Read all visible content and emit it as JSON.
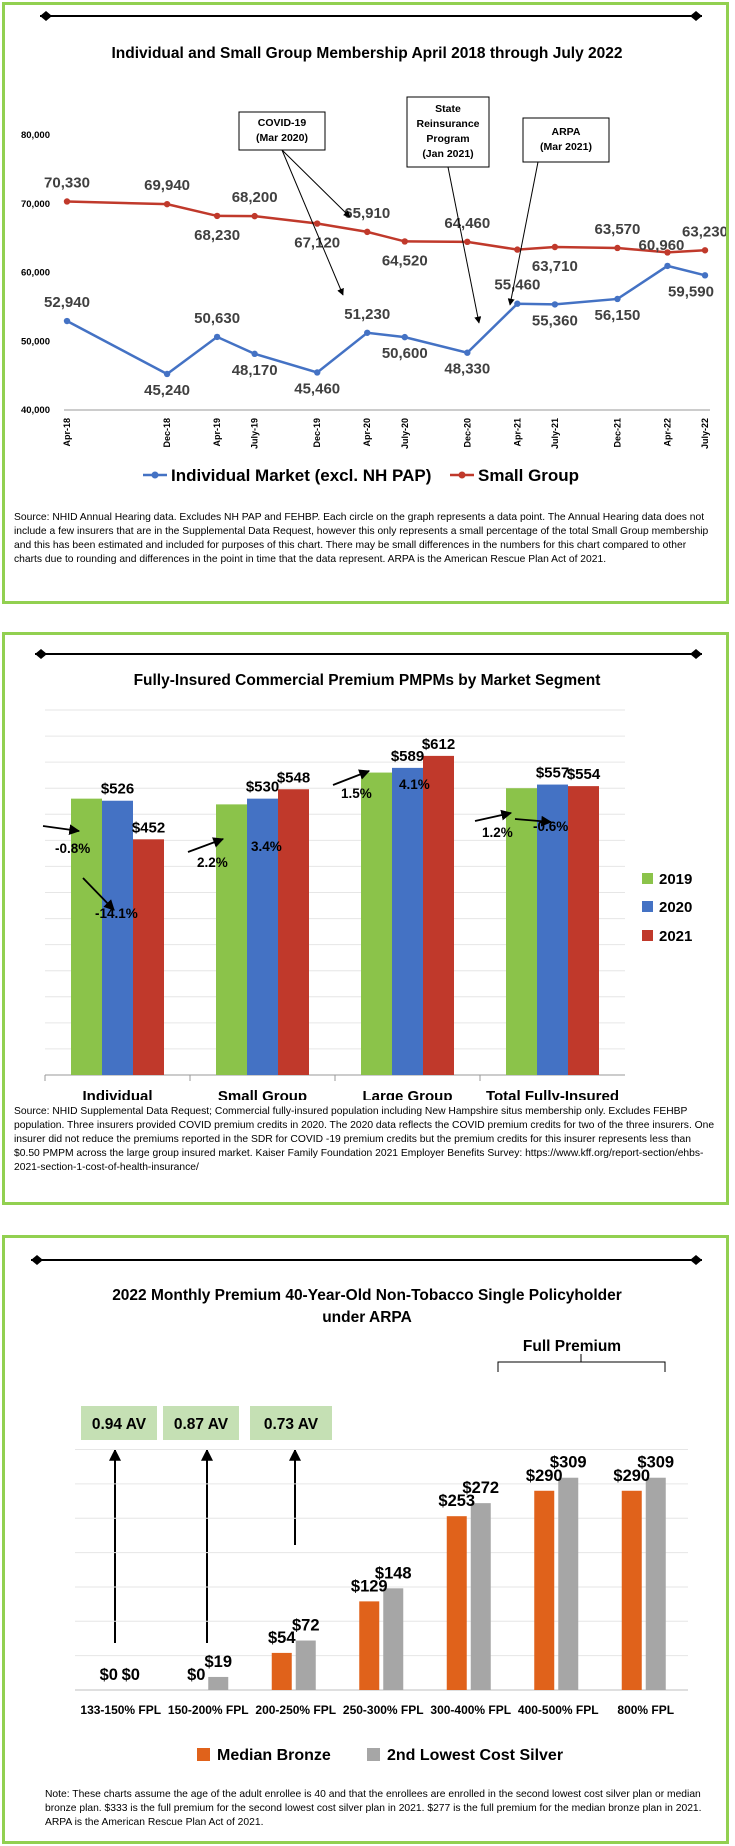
{
  "colors": {
    "border": "#92d050",
    "individual_line": "#4472c4",
    "small_group_line": "#c0392b",
    "bar_2019": "#8bc34a",
    "bar_2020": "#4472c4",
    "bar_2021": "#c0392b",
    "median_bronze": "#e0621b",
    "silver": "#a6a6a6",
    "av_box": "#c5e0b4"
  },
  "membership": {
    "source": "Source:  NHID Annual Hearing data.  Excludes NH PAP and FEHBP.  Each circle on the graph represents a data point.  The Annual Hearing data does not include a few insurers that are in the Supplemental Data Request, however this only represents a small percentage of the total Small Group membership and this has been estimated and included for purposes of this chart.  There may be small differences in the numbers for this chart compared to other charts due to rounding and differences in the point in time that the data represent.  ARPA is the American Rescue Plan Act of 2021.",
    "callouts": [
      {
        "l1": "COVID-19",
        "l2": "(Mar 2020)"
      },
      {
        "l1": "State",
        "l2": "Reinsurance",
        "l3": "Program",
        "l4": "(Jan 2021)"
      },
      {
        "l1": "ARPA",
        "l2": "(Mar 2021)"
      }
    ]
  },
  "premium_pmpm": {
    "source": "Source:  NHID Supplemental Data Request; Commercial fully-insured population including New Hampshire situs membership only.  Excludes FEHBP population.  Three insurers provided COVID premium credits in 2020.  The 2020 data reflects the COVID premium credits for two of the three insurers. One insurer did not reduce the premiums reported in the SDR for COVID -19 premium credits but the premium credits for this insurer represents less than $0.50 PMPM across the large group insured market. Kaiser Family Foundation 2021 Employer Benefits Survey: https://www.kff.org/report-section/ehbs-2021-section-1-cost-of-health-insurance/"
  },
  "arpa_premium": {
    "full_premium_label": "Full Premium",
    "av_labels": [
      "0.94 AV",
      "0.87 AV",
      "0.73 AV"
    ],
    "note": "Note: These charts assume the age of the adult enrollee is 40 and that the enrollees are enrolled in the second lowest cost silver plan or median bronze plan.  $333 is the full premium for the second lowest cost silver plan in 2021.  $277 is the full premium for the median bronze plan in 2021.  ARPA is the American Rescue Plan Act of 2021."
  },
  "chart_data": [
    {
      "type": "line",
      "title": "Individual and Small Group Membership April 2018 through July 2022",
      "x": [
        "Apr-18",
        "Dec-18",
        "Apr-19",
        "July-19",
        "Dec-19",
        "Apr-20",
        "July-20",
        "Dec-20",
        "Apr-21",
        "July-21",
        "Dec-21",
        "Apr-22",
        "July-22"
      ],
      "series": [
        {
          "name": "Individual Market (excl. NH PAP)",
          "values": [
            52940,
            45240,
            50630,
            48170,
            45460,
            51230,
            50600,
            48330,
            55460,
            55360,
            56150,
            60960,
            59590
          ]
        },
        {
          "name": "Small Group",
          "values": [
            70330,
            69940,
            68230,
            68200,
            67120,
            65910,
            64520,
            64460,
            63330,
            63710,
            63570,
            62920,
            63230
          ]
        }
      ],
      "data_labels": {
        "individual": [
          "52,940",
          "45,240",
          "50,630",
          "48,170",
          "45,460",
          "51,230",
          "50,600",
          "48,330",
          "55,460",
          "55,360",
          "56,150",
          "60,960",
          "59,590"
        ],
        "small_group": [
          "70,330",
          "69,940",
          "68,230",
          "68,200",
          "67,120",
          "65,910",
          "64,520",
          "64,460",
          "63,710",
          "63,570",
          "63,230"
        ]
      },
      "y_ticks": [
        "40,000",
        "50,000",
        "60,000",
        "70,000",
        "80,000"
      ],
      "ylim": [
        40000,
        80000
      ],
      "legend": "bottom",
      "grid": false
    },
    {
      "type": "bar",
      "title": "Fully-Insured Commercial Premium PMPMs by Market Segment",
      "categories": [
        "Individual",
        "Small Group",
        "Large Group",
        "Total Fully-Insured"
      ],
      "series": [
        {
          "name": "2019",
          "values": [
            530,
            519,
            580,
            550
          ]
        },
        {
          "name": "2020",
          "values": [
            526,
            530,
            589,
            557
          ]
        },
        {
          "name": "2021",
          "values": [
            452,
            548,
            612,
            554
          ]
        }
      ],
      "value_labels": {
        "2020": [
          "$526",
          "$530",
          "$589",
          "$557"
        ],
        "2021": [
          "$452",
          "$548",
          "$612",
          "$554"
        ]
      },
      "change_labels": [
        {
          "c2020": "-0.8%",
          "c2021": "-14.1%"
        },
        {
          "c2020": "2.2%",
          "c2021": "3.4%"
        },
        {
          "c2020": "1.5%",
          "c2021": "4.1%"
        },
        {
          "c2020": "1.2%",
          "c2021": "-0.6%"
        }
      ],
      "ylim": [
        0,
        700
      ],
      "legend": "right",
      "grid": true
    },
    {
      "type": "bar",
      "title": "2022 Monthly Premium 40-Year-Old Non-Tobacco Single Policyholder under ARPA",
      "categories": [
        "133-150% FPL",
        "150-200% FPL",
        "200-250% FPL",
        "250-300% FPL",
        "300-400% FPL",
        "400-500% FPL",
        "800% FPL"
      ],
      "series": [
        {
          "name": "Median Bronze",
          "values": [
            0,
            0,
            54,
            129,
            253,
            290,
            290
          ]
        },
        {
          "name": "2nd Lowest Cost Silver",
          "values": [
            0,
            19,
            72,
            148,
            272,
            309,
            309
          ]
        }
      ],
      "value_labels": {
        "bronze": [
          "$0",
          "$0",
          "$54",
          "$129",
          "$253",
          "$290",
          "$290"
        ],
        "silver": [
          "$0",
          "$19",
          "$72",
          "$148",
          "$272",
          "$309",
          "$309"
        ]
      },
      "ylim": [
        0,
        350
      ],
      "legend": "bottom",
      "grid": true
    }
  ]
}
